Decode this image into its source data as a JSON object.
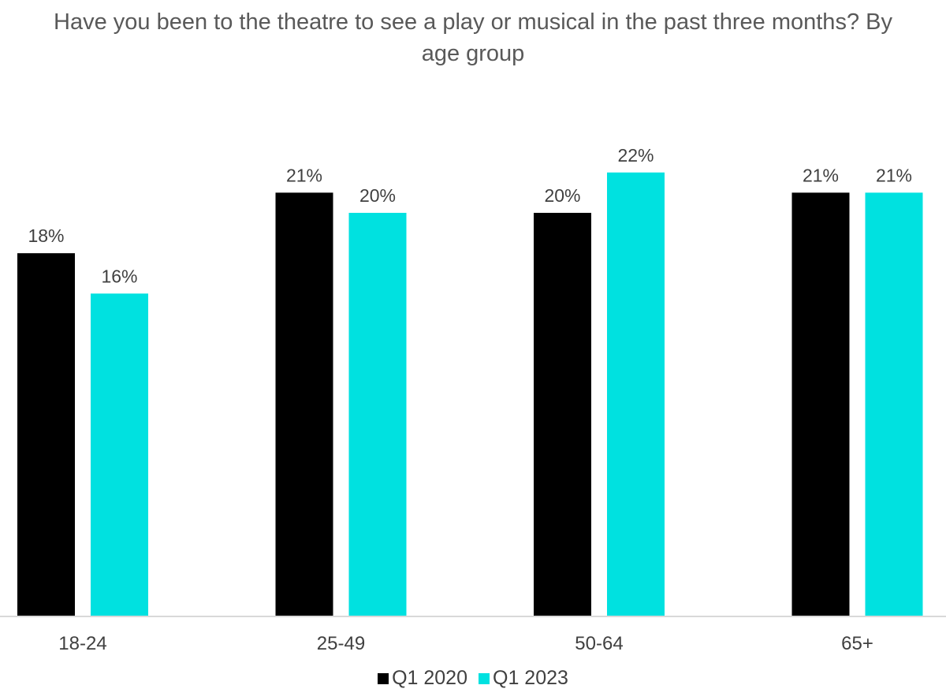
{
  "chart_data": {
    "type": "bar",
    "title": "Have you been to the theatre to see a play or musical in the past three months? By age group",
    "categories": [
      "18-24",
      "25-49",
      "50-64",
      "65+"
    ],
    "series": [
      {
        "name": "Q1 2020",
        "color": "#000000",
        "values": [
          18,
          21,
          20,
          21
        ],
        "labels": [
          "18%",
          "21%",
          "20%",
          "21%"
        ]
      },
      {
        "name": "Q1 2023",
        "color": "#00e1e0",
        "values": [
          16,
          20,
          22,
          21
        ],
        "labels": [
          "16%",
          "20%",
          "22%",
          "21%"
        ]
      }
    ],
    "xlabel": "",
    "ylabel": "",
    "grid": false,
    "legend": "bottom"
  }
}
